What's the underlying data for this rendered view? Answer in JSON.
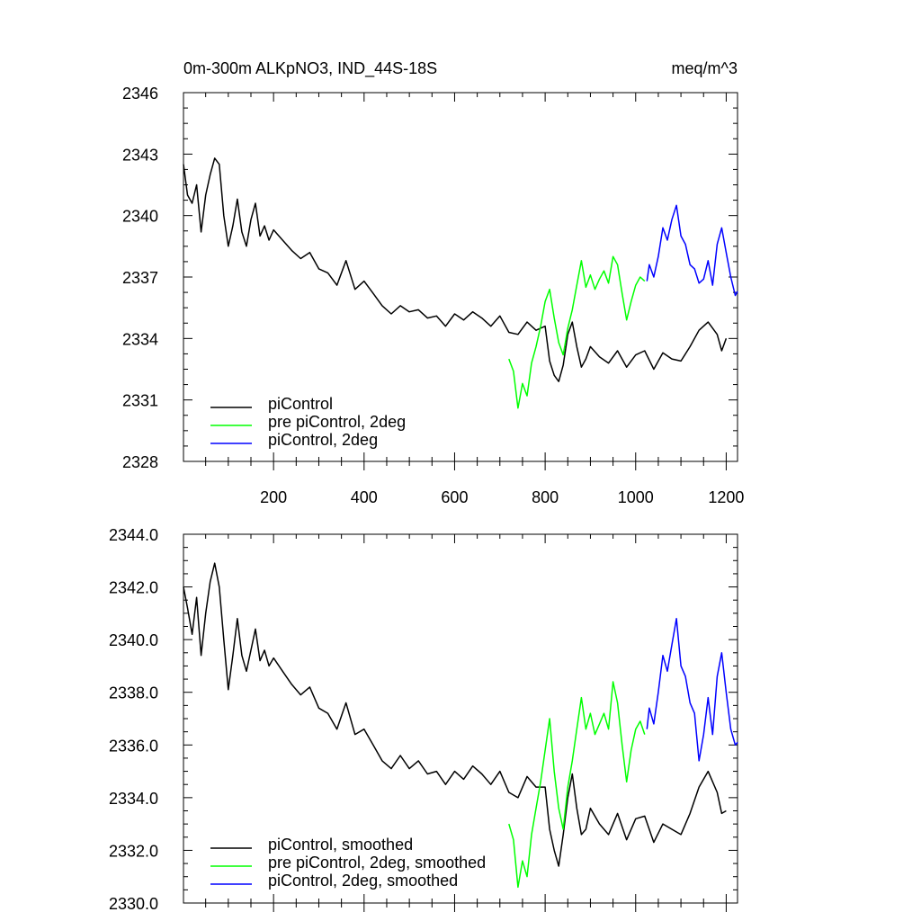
{
  "chart_data": [
    {
      "type": "line",
      "title": "0m-300m ALKpNO3, IND_44S-18S",
      "units": "meq/m^3",
      "xlim": [
        1,
        1225
      ],
      "ylim": [
        2328,
        2346
      ],
      "x_ticks": [
        200,
        400,
        600,
        800,
        1000,
        1200
      ],
      "x_tick_labels": [
        "200",
        "400",
        "600",
        "800",
        "1000",
        "1200"
      ],
      "y_ticks": [
        2328,
        2331,
        2334,
        2337,
        2340,
        2343,
        2346
      ],
      "y_tick_labels": [
        "2328",
        "2331",
        "2334",
        "2337",
        "2340",
        "2343",
        "2346"
      ],
      "legend_position": "bottom-left",
      "series": [
        {
          "name": "piControl",
          "color": "#000000",
          "x": [
            1,
            10,
            20,
            30,
            40,
            50,
            60,
            70,
            80,
            90,
            100,
            110,
            120,
            130,
            140,
            150,
            160,
            170,
            180,
            190,
            200,
            220,
            240,
            260,
            280,
            300,
            320,
            340,
            360,
            380,
            400,
            420,
            440,
            460,
            480,
            500,
            520,
            540,
            560,
            580,
            600,
            620,
            640,
            660,
            680,
            700,
            720,
            740,
            760,
            780,
            800,
            810,
            820,
            830,
            840,
            850,
            860,
            870,
            880,
            890,
            900,
            920,
            940,
            960,
            980,
            1000,
            1020,
            1040,
            1060,
            1080,
            1100,
            1120,
            1140,
            1160,
            1180,
            1190,
            1200
          ],
          "values": [
            2342.5,
            2341.0,
            2340.6,
            2341.5,
            2339.2,
            2341.0,
            2342.0,
            2342.8,
            2342.5,
            2340.0,
            2338.5,
            2339.5,
            2340.8,
            2339.2,
            2338.5,
            2339.8,
            2340.6,
            2339.0,
            2339.5,
            2338.8,
            2339.3,
            2338.8,
            2338.3,
            2337.9,
            2338.2,
            2337.4,
            2337.2,
            2336.6,
            2337.8,
            2336.4,
            2336.8,
            2336.2,
            2335.6,
            2335.2,
            2335.6,
            2335.3,
            2335.4,
            2335.0,
            2335.1,
            2334.6,
            2335.2,
            2334.9,
            2335.3,
            2335.0,
            2334.6,
            2335.1,
            2334.3,
            2334.2,
            2334.8,
            2334.4,
            2334.6,
            2332.9,
            2332.2,
            2331.9,
            2332.7,
            2334.2,
            2334.8,
            2333.6,
            2332.6,
            2333.0,
            2333.6,
            2333.1,
            2332.8,
            2333.4,
            2332.6,
            2333.2,
            2333.4,
            2332.5,
            2333.3,
            2333.0,
            2332.9,
            2333.6,
            2334.4,
            2334.8,
            2334.2,
            2333.4,
            2334.0
          ]
        },
        {
          "name": "pre piControl, 2deg",
          "color": "#00ff00",
          "x": [
            720,
            730,
            740,
            750,
            760,
            770,
            780,
            790,
            800,
            810,
            820,
            830,
            840,
            850,
            860,
            870,
            880,
            890,
            900,
            910,
            920,
            930,
            940,
            950,
            960,
            970,
            980,
            990,
            1000,
            1010,
            1020
          ],
          "values": [
            2333.0,
            2332.4,
            2330.6,
            2331.8,
            2331.2,
            2332.8,
            2333.6,
            2334.6,
            2335.8,
            2336.4,
            2335.0,
            2333.8,
            2333.2,
            2334.5,
            2335.4,
            2336.6,
            2337.8,
            2336.5,
            2337.1,
            2336.4,
            2336.9,
            2337.3,
            2336.7,
            2338.0,
            2337.6,
            2336.2,
            2334.9,
            2335.8,
            2336.6,
            2337.0,
            2336.8
          ]
        },
        {
          "name": "piControl, 2deg",
          "color": "#0000ff",
          "x": [
            1025,
            1030,
            1040,
            1050,
            1060,
            1070,
            1080,
            1090,
            1100,
            1110,
            1120,
            1130,
            1140,
            1150,
            1160,
            1170,
            1180,
            1190,
            1200,
            1210,
            1220,
            1225
          ],
          "values": [
            2336.8,
            2337.6,
            2337.0,
            2338.0,
            2339.4,
            2338.8,
            2339.8,
            2340.5,
            2339.0,
            2338.6,
            2337.6,
            2337.4,
            2336.7,
            2336.9,
            2337.8,
            2336.6,
            2338.6,
            2339.4,
            2338.2,
            2337.0,
            2336.1,
            2336.3
          ]
        }
      ]
    },
    {
      "type": "line",
      "title": "",
      "xlim": [
        1,
        1225
      ],
      "ylim": [
        2330.0,
        2344.0
      ],
      "x_ticks": [
        200,
        400,
        600,
        800,
        1000,
        1200
      ],
      "x_tick_labels": [],
      "y_ticks": [
        2330.0,
        2332.0,
        2334.0,
        2336.0,
        2338.0,
        2340.0,
        2342.0,
        2344.0
      ],
      "y_tick_labels": [
        "2330.0",
        "2332.0",
        "2334.0",
        "2336.0",
        "2338.0",
        "2340.0",
        "2342.0",
        "2344.0"
      ],
      "legend_position": "bottom-left",
      "series": [
        {
          "name": "piControl, smoothed",
          "color": "#000000",
          "x": [
            1,
            10,
            20,
            30,
            40,
            50,
            60,
            70,
            80,
            90,
            100,
            110,
            120,
            130,
            140,
            150,
            160,
            170,
            180,
            190,
            200,
            220,
            240,
            260,
            280,
            300,
            320,
            340,
            360,
            380,
            400,
            420,
            440,
            460,
            480,
            500,
            520,
            540,
            560,
            580,
            600,
            620,
            640,
            660,
            680,
            700,
            720,
            740,
            760,
            780,
            800,
            810,
            820,
            830,
            840,
            850,
            860,
            870,
            880,
            890,
            900,
            920,
            940,
            960,
            980,
            1000,
            1020,
            1040,
            1060,
            1080,
            1100,
            1120,
            1140,
            1160,
            1180,
            1190,
            1200
          ],
          "values": [
            2342.0,
            2341.2,
            2340.2,
            2341.6,
            2339.4,
            2341.0,
            2342.2,
            2342.9,
            2342.0,
            2340.0,
            2338.1,
            2339.4,
            2340.8,
            2339.4,
            2338.8,
            2339.6,
            2340.4,
            2339.2,
            2339.6,
            2339.0,
            2339.3,
            2338.8,
            2338.3,
            2337.9,
            2338.2,
            2337.4,
            2337.2,
            2336.6,
            2337.6,
            2336.4,
            2336.6,
            2336.0,
            2335.4,
            2335.1,
            2335.6,
            2335.1,
            2335.4,
            2334.9,
            2335.0,
            2334.5,
            2335.0,
            2334.7,
            2335.2,
            2334.9,
            2334.5,
            2335.0,
            2334.2,
            2334.0,
            2334.8,
            2334.4,
            2334.4,
            2332.8,
            2332.0,
            2331.4,
            2332.6,
            2334.0,
            2334.9,
            2333.6,
            2332.6,
            2332.8,
            2333.6,
            2333.0,
            2332.6,
            2333.4,
            2332.4,
            2333.2,
            2333.3,
            2332.3,
            2333.0,
            2332.8,
            2332.6,
            2333.4,
            2334.4,
            2335.0,
            2334.2,
            2333.4,
            2333.5
          ]
        },
        {
          "name": "pre piControl, 2deg, smoothed",
          "color": "#00ff00",
          "x": [
            720,
            730,
            740,
            750,
            760,
            770,
            780,
            790,
            800,
            810,
            820,
            830,
            840,
            850,
            860,
            870,
            880,
            890,
            900,
            910,
            920,
            930,
            940,
            950,
            960,
            970,
            980,
            990,
            1000,
            1010,
            1020
          ],
          "values": [
            2333.0,
            2332.4,
            2330.6,
            2331.6,
            2331.0,
            2332.6,
            2333.6,
            2334.6,
            2335.8,
            2337.0,
            2335.0,
            2333.6,
            2332.8,
            2334.4,
            2335.4,
            2336.6,
            2337.8,
            2336.6,
            2337.2,
            2336.4,
            2336.8,
            2337.2,
            2336.6,
            2338.4,
            2337.6,
            2336.0,
            2334.6,
            2335.8,
            2336.6,
            2336.9,
            2336.4
          ]
        },
        {
          "name": "piControl, 2deg, smoothed",
          "color": "#0000ff",
          "x": [
            1025,
            1030,
            1040,
            1050,
            1060,
            1070,
            1080,
            1090,
            1100,
            1110,
            1120,
            1130,
            1140,
            1150,
            1160,
            1170,
            1180,
            1190,
            1200,
            1210,
            1220,
            1225
          ],
          "values": [
            2336.6,
            2337.4,
            2336.8,
            2338.0,
            2339.4,
            2338.8,
            2339.8,
            2340.8,
            2339.0,
            2338.6,
            2337.6,
            2337.2,
            2335.4,
            2336.4,
            2337.8,
            2336.4,
            2338.6,
            2339.5,
            2338.0,
            2336.6,
            2336.0,
            2336.1
          ]
        }
      ]
    }
  ]
}
